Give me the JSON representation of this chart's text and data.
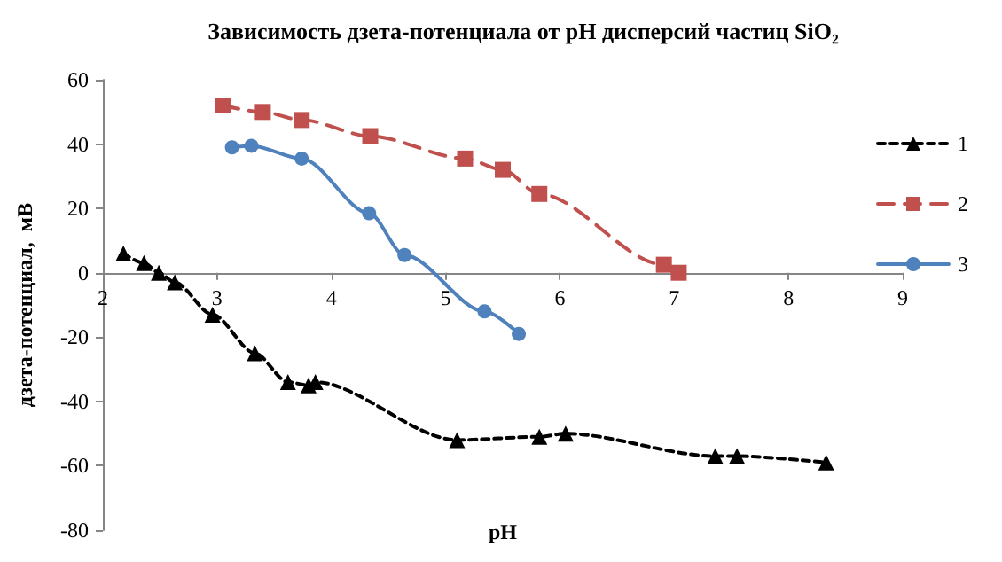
{
  "chart_data": {
    "type": "line",
    "title": "Зависимость дзета-потенциала от pH дисперсий частиц SiO₂",
    "xlabel": "pH",
    "ylabel": "дзета-потенциал,  мВ",
    "xlim": [
      2,
      9
    ],
    "xticks": [
      2,
      3,
      4,
      5,
      6,
      7,
      8,
      9
    ],
    "ylim": [
      -80,
      60
    ],
    "yticks": [
      -80,
      -60,
      -40,
      -20,
      0,
      20,
      40,
      60
    ],
    "grid": false,
    "legend": "right",
    "series": [
      {
        "name": "1",
        "color": "#000000",
        "marker": "triangle",
        "line_style": "dashed",
        "x": [
          2.18,
          2.36,
          2.49,
          2.63,
          2.96,
          3.33,
          3.62,
          3.8,
          3.86,
          5.1,
          5.82,
          6.05,
          7.36,
          7.55,
          8.33
        ],
        "values": [
          6,
          3,
          0,
          -3,
          -13,
          -25,
          -34,
          -35,
          -34,
          -52,
          -51,
          -50,
          -57,
          -57,
          -59
        ]
      },
      {
        "name": "2",
        "color": "#c0504d",
        "marker": "square",
        "line_style": "dashed",
        "x": [
          3.05,
          3.4,
          3.74,
          4.34,
          5.17,
          5.5,
          5.82,
          6.91,
          7.04
        ],
        "values": [
          52,
          50,
          47.5,
          42.5,
          35.5,
          32,
          24.5,
          2.5,
          0
        ]
      },
      {
        "name": "3",
        "color": "#4f81bd",
        "marker": "circle",
        "line_style": "solid",
        "x": [
          3.13,
          3.3,
          3.74,
          4.33,
          4.64,
          5.34,
          5.64
        ],
        "values": [
          39,
          39.5,
          35.5,
          18.5,
          5.5,
          -12,
          -19
        ]
      }
    ]
  }
}
